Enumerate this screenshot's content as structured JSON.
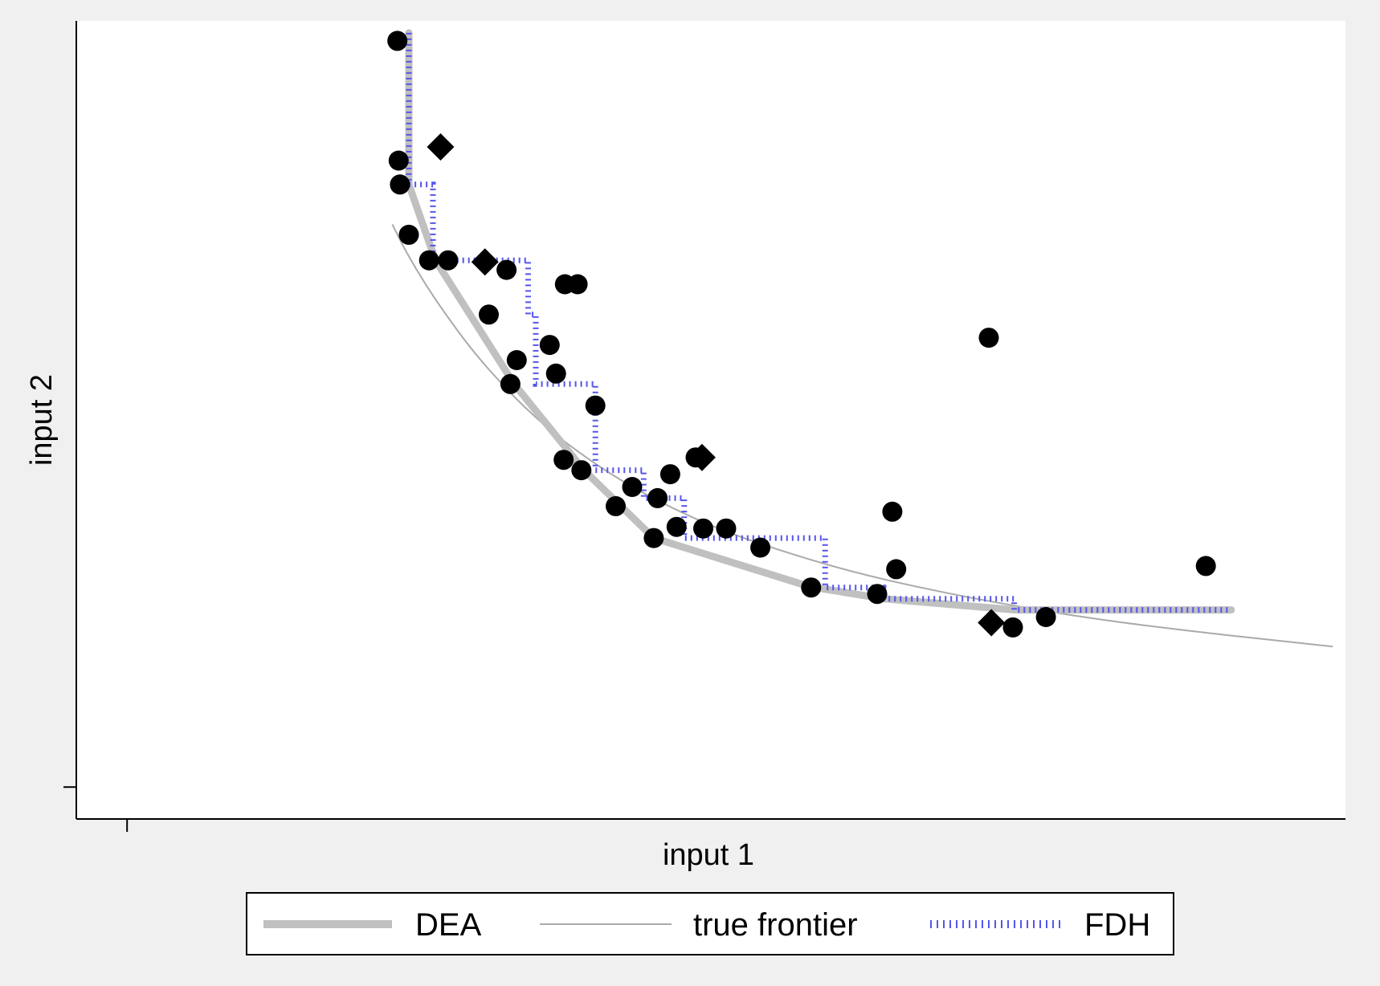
{
  "chart_data": {
    "type": "scatter",
    "xlabel": "input 1",
    "ylabel": "input 2",
    "xlim": [
      0,
      1.0
    ],
    "ylim": [
      0,
      1.0
    ],
    "xticks": [
      0.04
    ],
    "yticks": [
      0.04
    ],
    "tick_labels_shown": false,
    "grid": false,
    "legend_position": "bottom",
    "legend": [
      {
        "name": "DEA",
        "style": "thick-gray-line",
        "color": "#c0c0c0"
      },
      {
        "name": "true frontier",
        "style": "thin-gray-line",
        "color": "#aaaaaa"
      },
      {
        "name": "FDH",
        "style": "dotted-blue-line",
        "color": "#5555ee"
      }
    ],
    "circle_points": [
      [
        0.255,
        0.795
      ],
      [
        0.278,
        0.7
      ],
      [
        0.293,
        0.7
      ],
      [
        0.253,
        0.975
      ],
      [
        0.254,
        0.825
      ],
      [
        0.262,
        0.732
      ],
      [
        0.339,
        0.688
      ],
      [
        0.325,
        0.632
      ],
      [
        0.347,
        0.575
      ],
      [
        0.385,
        0.67
      ],
      [
        0.395,
        0.67
      ],
      [
        0.373,
        0.594
      ],
      [
        0.378,
        0.558
      ],
      [
        0.342,
        0.545
      ],
      [
        0.384,
        0.45
      ],
      [
        0.398,
        0.437
      ],
      [
        0.409,
        0.518
      ],
      [
        0.425,
        0.392
      ],
      [
        0.438,
        0.416
      ],
      [
        0.458,
        0.402
      ],
      [
        0.455,
        0.352
      ],
      [
        0.473,
        0.366
      ],
      [
        0.468,
        0.432
      ],
      [
        0.488,
        0.453
      ],
      [
        0.494,
        0.364
      ],
      [
        0.512,
        0.364
      ],
      [
        0.539,
        0.34
      ],
      [
        0.579,
        0.29
      ],
      [
        0.631,
        0.282
      ],
      [
        0.643,
        0.385
      ],
      [
        0.646,
        0.313
      ],
      [
        0.738,
        0.24
      ],
      [
        0.719,
        0.603
      ],
      [
        0.764,
        0.253
      ],
      [
        0.89,
        0.317
      ]
    ],
    "diamond_points": [
      [
        0.287,
        0.842
      ],
      [
        0.322,
        0.698
      ],
      [
        0.493,
        0.453
      ],
      [
        0.721,
        0.246
      ]
    ],
    "dea_frontier": [
      [
        0.262,
        0.985
      ],
      [
        0.262,
        0.795
      ],
      [
        0.283,
        0.7
      ],
      [
        0.345,
        0.545
      ],
      [
        0.4,
        0.437
      ],
      [
        0.455,
        0.352
      ],
      [
        0.578,
        0.291
      ],
      [
        0.636,
        0.276
      ],
      [
        0.74,
        0.262
      ],
      [
        0.91,
        0.262
      ]
    ],
    "fdh_frontier": [
      [
        0.262,
        0.985
      ],
      [
        0.262,
        0.795
      ],
      [
        0.281,
        0.795
      ],
      [
        0.281,
        0.7
      ],
      [
        0.356,
        0.7
      ],
      [
        0.356,
        0.632
      ],
      [
        0.362,
        0.632
      ],
      [
        0.362,
        0.545
      ],
      [
        0.409,
        0.545
      ],
      [
        0.409,
        0.437
      ],
      [
        0.447,
        0.437
      ],
      [
        0.447,
        0.402
      ],
      [
        0.479,
        0.402
      ],
      [
        0.479,
        0.352
      ],
      [
        0.59,
        0.352
      ],
      [
        0.59,
        0.29
      ],
      [
        0.636,
        0.29
      ],
      [
        0.636,
        0.276
      ],
      [
        0.739,
        0.276
      ],
      [
        0.739,
        0.262
      ],
      [
        0.91,
        0.262
      ]
    ],
    "true_frontier": [
      [
        0.249,
        0.745
      ],
      [
        0.26,
        0.71
      ],
      [
        0.275,
        0.67
      ],
      [
        0.292,
        0.63
      ],
      [
        0.313,
        0.585
      ],
      [
        0.338,
        0.54
      ],
      [
        0.365,
        0.498
      ],
      [
        0.395,
        0.46
      ],
      [
        0.428,
        0.425
      ],
      [
        0.466,
        0.392
      ],
      [
        0.508,
        0.362
      ],
      [
        0.555,
        0.336
      ],
      [
        0.61,
        0.31
      ],
      [
        0.67,
        0.288
      ],
      [
        0.735,
        0.268
      ],
      [
        0.805,
        0.25
      ],
      [
        0.88,
        0.235
      ],
      [
        0.955,
        0.222
      ],
      [
        0.99,
        0.216
      ]
    ]
  }
}
